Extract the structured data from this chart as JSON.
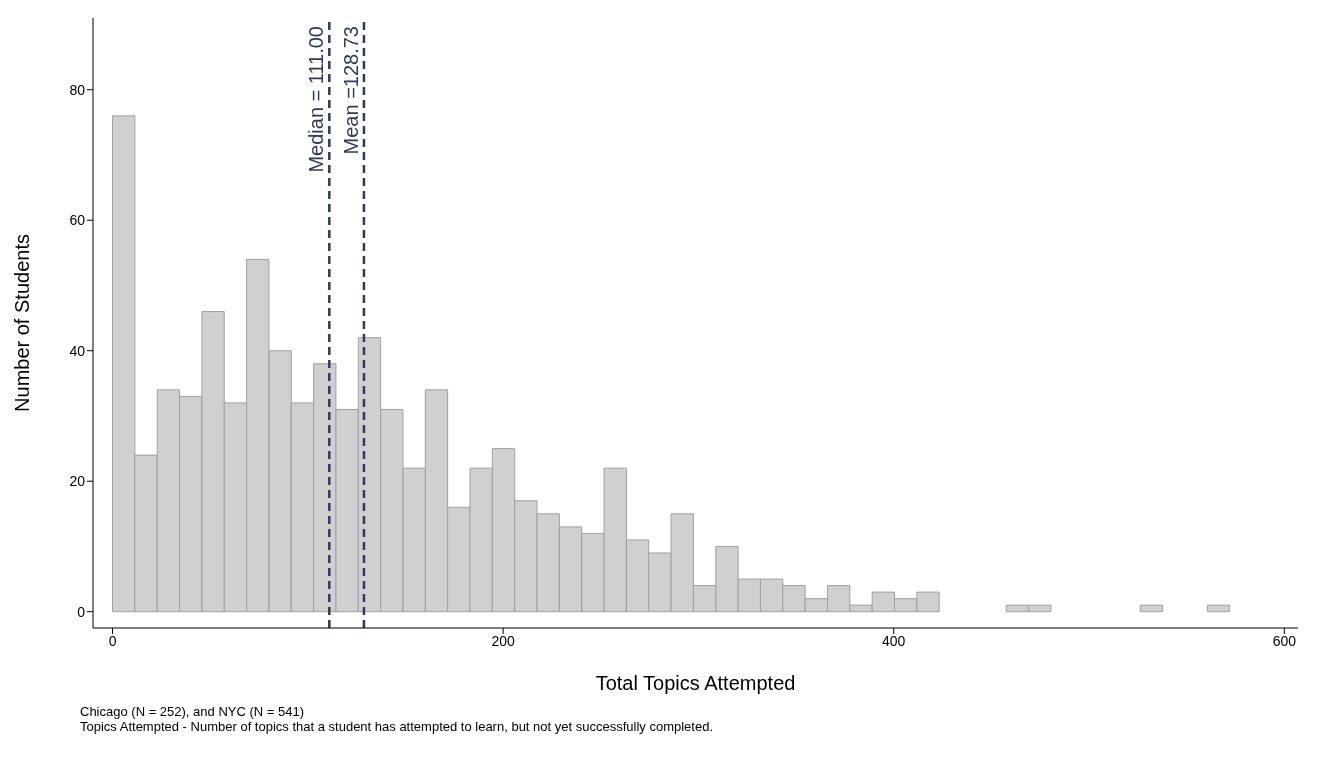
{
  "chart_data": {
    "type": "histogram",
    "xlabel": "Total Topics Attempted",
    "ylabel": "Number of Students",
    "bins": [
      0,
      11.44,
      22.88,
      34.32,
      45.76,
      57.2,
      68.64,
      80.08,
      91.52,
      102.96,
      114.4,
      125.84,
      137.28,
      148.72,
      160.16,
      171.6,
      183.04,
      194.48,
      205.92,
      217.36,
      228.8,
      240.24,
      251.68,
      263.12,
      274.56,
      286,
      297.44,
      308.88,
      320.32,
      331.76,
      343.2,
      354.64,
      366.08,
      377.52,
      388.96,
      400.4,
      411.84,
      423.28,
      434.72,
      446.16,
      457.6,
      469.04,
      480.48,
      491.92,
      503.36,
      514.8,
      526.24,
      537.68,
      549.12,
      560.56,
      572
    ],
    "values": [
      76,
      24,
      34,
      33,
      46,
      32,
      54,
      40,
      32,
      38,
      31,
      42,
      31,
      22,
      34,
      16,
      22,
      25,
      17,
      15,
      13,
      12,
      22,
      11,
      9,
      15,
      4,
      10,
      5,
      5,
      4,
      2,
      4,
      1,
      3,
      2,
      3,
      0,
      0,
      0,
      1,
      1,
      0,
      0,
      0,
      0,
      1,
      0,
      0,
      1
    ],
    "color": "#d0d0d0",
    "xlim": [
      -10,
      607
    ],
    "xticks": [
      0,
      200,
      400,
      600
    ],
    "ylim": [
      -2.5,
      91
    ],
    "yticks": [
      0,
      20,
      40,
      60,
      80
    ],
    "grid": false,
    "ref_lines": [
      {
        "axis": "x",
        "value": 111,
        "label": "Median = 111.00",
        "color": "#2e3a5c",
        "line_style": "dashed"
      },
      {
        "axis": "x",
        "value": 128.73,
        "label": "Mean =128.73",
        "color": "#2e3a5c",
        "line_style": "dashed"
      }
    ],
    "annotations": [
      "Chicago (N = 252), and NYC (N = 541)",
      "Topics Attempted - Number of topics that a student has attempted to learn, but not yet successfully completed."
    ]
  }
}
